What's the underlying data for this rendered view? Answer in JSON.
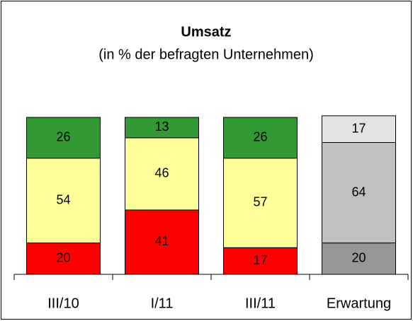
{
  "chart_data": {
    "type": "stacked_bar",
    "title": "Umsatz",
    "subtitle": "(in % der befragten Unternehmen)",
    "categories": [
      "III/10",
      "I/11",
      "III/11",
      "Erwartung"
    ],
    "series": [
      {
        "colors": [
          "#ff0000",
          "#ff0000",
          "#ff0000",
          "#969696"
        ],
        "values": [
          20,
          41,
          17,
          20
        ]
      },
      {
        "colors": [
          "#ffff99",
          "#ffff99",
          "#ffff99",
          "#c0c0c0"
        ],
        "values": [
          54,
          46,
          57,
          64
        ]
      },
      {
        "colors": [
          "#339933",
          "#339933",
          "#339933",
          "#e3e3e3"
        ],
        "values": [
          26,
          13,
          26,
          17
        ]
      }
    ],
    "ylim": [
      0,
      100
    ]
  }
}
